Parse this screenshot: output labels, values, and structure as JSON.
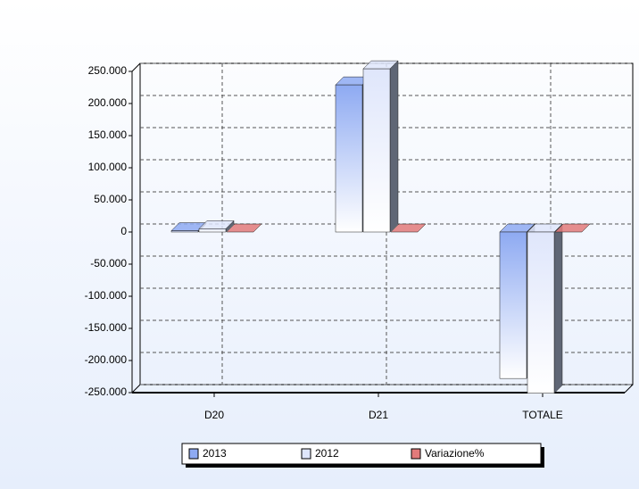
{
  "chart_data": {
    "type": "bar3d",
    "categories": [
      "D20",
      "D21",
      "TOTALE"
    ],
    "series": [
      {
        "name": "2013",
        "color": "#8eaaf2",
        "values": [
          2000,
          229000,
          -228000
        ]
      },
      {
        "name": "2012",
        "color": "#dfe6fb",
        "values": [
          5000,
          254000,
          -251000
        ]
      },
      {
        "name": "Variazione%",
        "color": "#e27a7a",
        "values": [
          0,
          0,
          0
        ]
      }
    ],
    "ylim": [
      -250000,
      250000
    ],
    "yticks": [
      {
        "value": -250000,
        "label": "-250.000"
      },
      {
        "value": -200000,
        "label": "-200.000"
      },
      {
        "value": -150000,
        "label": "-150.000"
      },
      {
        "value": -100000,
        "label": "-100.000"
      },
      {
        "value": -50000,
        "label": "-50.000"
      },
      0,
      {
        "value": 50000,
        "label": "50.000"
      },
      {
        "value": 100000,
        "label": "100.000"
      },
      {
        "value": 150000,
        "label": "150.000"
      },
      {
        "value": 200000,
        "label": "200.000"
      },
      {
        "value": 250000,
        "label": "250.000"
      }
    ],
    "grid": true,
    "legend": "bottom"
  }
}
